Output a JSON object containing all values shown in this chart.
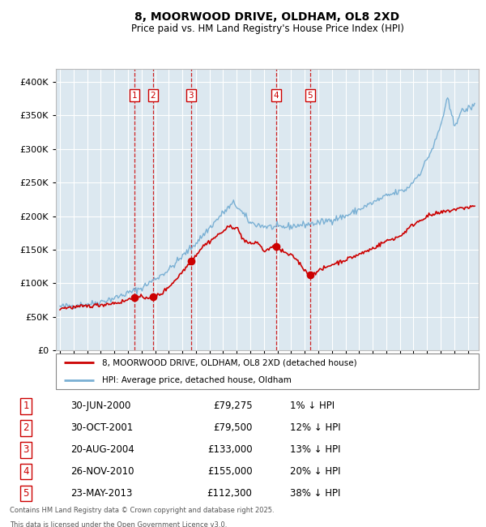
{
  "title_line1": "8, MOORWOOD DRIVE, OLDHAM, OL8 2XD",
  "title_line2": "Price paid vs. HM Land Registry's House Price Index (HPI)",
  "legend_label_red": "8, MOORWOOD DRIVE, OLDHAM, OL8 2XD (detached house)",
  "legend_label_blue": "HPI: Average price, detached house, Oldham",
  "footer_line1": "Contains HM Land Registry data © Crown copyright and database right 2025.",
  "footer_line2": "This data is licensed under the Open Government Licence v3.0.",
  "transactions": [
    {
      "num": 1,
      "date": "30-JUN-2000",
      "price": "£79,275",
      "pct": "1%",
      "dir": "↓",
      "year": 2000.5
    },
    {
      "num": 2,
      "date": "30-OCT-2001",
      "price": "£79,500",
      "pct": "12%",
      "dir": "↓",
      "year": 2001.83
    },
    {
      "num": 3,
      "date": "20-AUG-2004",
      "price": "£133,000",
      "pct": "13%",
      "dir": "↓",
      "year": 2004.64
    },
    {
      "num": 4,
      "date": "26-NOV-2010",
      "price": "£155,000",
      "pct": "20%",
      "dir": "↓",
      "year": 2010.9
    },
    {
      "num": 5,
      "date": "23-MAY-2013",
      "price": "£112,300",
      "pct": "38%",
      "dir": "↓",
      "year": 2013.39
    }
  ],
  "red_dot_values": [
    79275,
    79500,
    133000,
    155000,
    112300
  ],
  "vline_colors": [
    "#cc0000",
    "#cc0000",
    "#cc0000",
    "#cc0000",
    "#cc0000"
  ],
  "plot_bg_color": "#dce8f0",
  "red_line_color": "#cc0000",
  "blue_line_color": "#7ab0d4",
  "grid_color": "#ffffff",
  "ylim_max": 420000,
  "xlim_start": 1994.7,
  "xlim_end": 2025.8,
  "ytick_step": 50000,
  "xtick_start": 1995,
  "xtick_end": 2025
}
